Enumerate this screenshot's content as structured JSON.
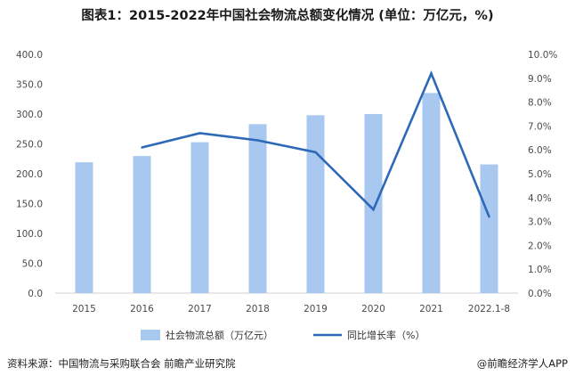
{
  "title": "图表1：2015-2022年中国社会物流总额变化情况 (单位：万亿元，%)",
  "source": "资料来源：中国物流与采购联合会 前瞻产业研究院",
  "credit": "@前瞻经济学人APP",
  "chart_data": {
    "type": "bar+line",
    "categories": [
      "2015",
      "2016",
      "2017",
      "2018",
      "2019",
      "2020",
      "2021",
      "2022.1-8"
    ],
    "series": [
      {
        "name": "社会物流总额（万亿元）",
        "type": "bar",
        "axis": "left",
        "values": [
          219.2,
          229.7,
          252.8,
          283.1,
          298.0,
          300.1,
          335.2,
          215.6
        ]
      },
      {
        "name": "同比增长率（%）",
        "type": "line",
        "axis": "right",
        "values": [
          null,
          6.1,
          6.7,
          6.4,
          5.9,
          3.5,
          9.2,
          3.2
        ]
      }
    ],
    "y_left": {
      "min": 0,
      "max": 400,
      "step": 50,
      "ticks": [
        "0.0",
        "50.0",
        "100.0",
        "150.0",
        "200.0",
        "250.0",
        "300.0",
        "350.0",
        "400.0"
      ]
    },
    "y_right": {
      "min": 0,
      "max": 10,
      "step": 1,
      "ticks": [
        "0.0%",
        "1.0%",
        "2.0%",
        "3.0%",
        "4.0%",
        "5.0%",
        "6.0%",
        "7.0%",
        "8.0%",
        "9.0%",
        "10.0%"
      ]
    },
    "legend_position": "bottom-center",
    "grid": false,
    "colors": {
      "bar": "#a9c8ef",
      "line": "#2e69b8",
      "axis_text": "#4a4a4a"
    }
  }
}
